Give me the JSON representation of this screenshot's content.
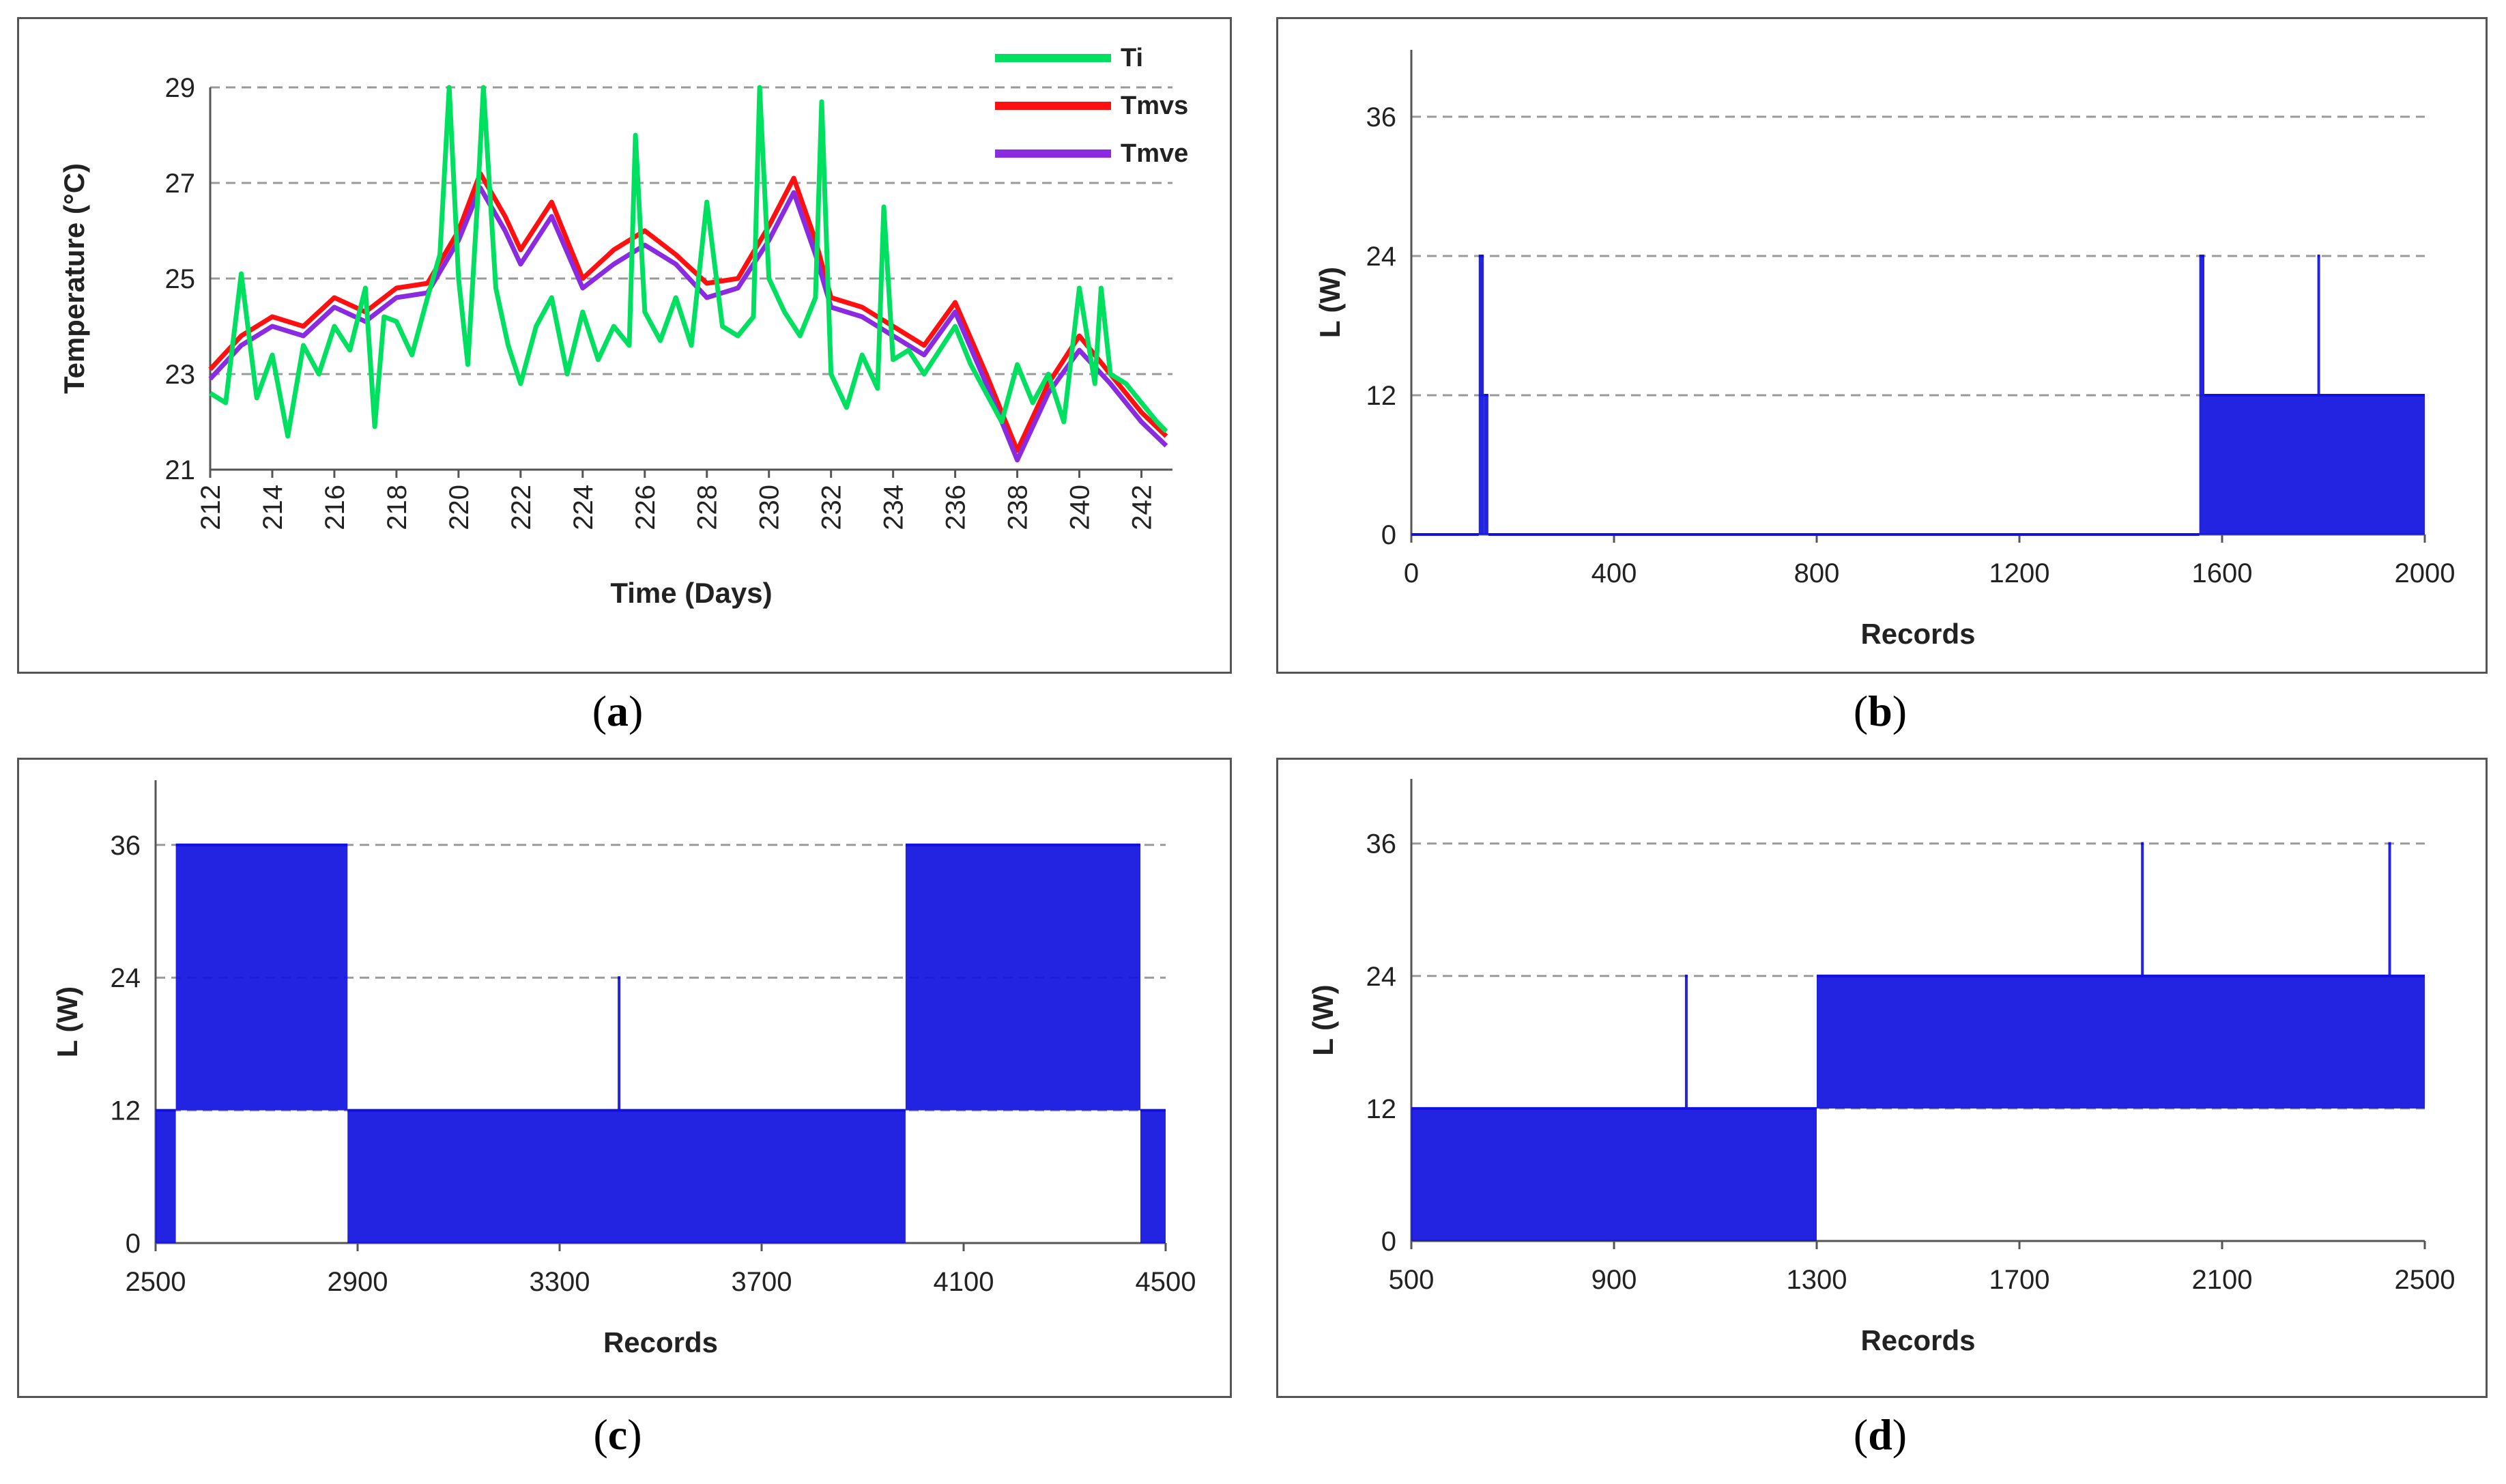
{
  "captions": {
    "a": "a",
    "b": "b",
    "c": "c",
    "d": "d"
  },
  "colors": {
    "Ti": "#00e060",
    "Tmvs": "#ff1010",
    "Tmve": "#8a2be2",
    "load": "#1010e0",
    "grid": "#999999"
  },
  "chart_data": [
    {
      "id": "a",
      "type": "line",
      "title": "",
      "xlabel": "Time (Days)",
      "ylabel": "Temperature (°C)",
      "xlim": [
        212,
        243
      ],
      "ylim": [
        21,
        29
      ],
      "xticks": [
        "212",
        "214",
        "216",
        "218",
        "220",
        "222",
        "224",
        "226",
        "228",
        "230",
        "232",
        "234",
        "236",
        "238",
        "240",
        "242"
      ],
      "yticks": [
        "21",
        "23",
        "25",
        "27",
        "29"
      ],
      "legend": [
        "Ti",
        "Tmvs",
        "Tmve"
      ],
      "series": [
        {
          "name": "Tmvs",
          "x": [
            212,
            213,
            214,
            215,
            216,
            217,
            218,
            219,
            220,
            220.7,
            221.5,
            222,
            223,
            224,
            225,
            226,
            227,
            228,
            229,
            230,
            230.8,
            231.5,
            232,
            233,
            234,
            235,
            236,
            237,
            238,
            239,
            240,
            241,
            242,
            242.8
          ],
          "y": [
            23.1,
            23.8,
            24.2,
            24.0,
            24.6,
            24.3,
            24.8,
            24.9,
            26.0,
            27.2,
            26.3,
            25.6,
            26.6,
            25.0,
            25.6,
            26.0,
            25.5,
            24.9,
            25.0,
            26.1,
            27.1,
            25.8,
            24.6,
            24.4,
            24.0,
            23.6,
            24.5,
            23.0,
            21.4,
            22.8,
            23.8,
            23.0,
            22.2,
            21.7
          ]
        },
        {
          "name": "Tmve",
          "x": [
            212,
            213,
            214,
            215,
            216,
            217,
            218,
            219,
            220,
            220.7,
            221.5,
            222,
            223,
            224,
            225,
            226,
            227,
            228,
            229,
            230,
            230.8,
            231.5,
            232,
            233,
            234,
            235,
            236,
            237,
            238,
            239,
            240,
            241,
            242,
            242.8
          ],
          "y": [
            22.9,
            23.6,
            24.0,
            23.8,
            24.4,
            24.1,
            24.6,
            24.7,
            25.8,
            26.9,
            26.0,
            25.3,
            26.3,
            24.8,
            25.3,
            25.7,
            25.3,
            24.6,
            24.8,
            25.8,
            26.8,
            25.5,
            24.4,
            24.2,
            23.8,
            23.4,
            24.3,
            22.8,
            21.2,
            22.6,
            23.5,
            22.8,
            22.0,
            21.5
          ]
        },
        {
          "name": "Ti",
          "x": [
            212,
            212.5,
            213,
            213.5,
            214,
            214.5,
            215,
            215.5,
            216,
            216.5,
            217,
            217.3,
            217.6,
            218,
            218.5,
            219,
            219.4,
            219.7,
            220,
            220.3,
            220.6,
            220.8,
            221.2,
            221.6,
            222,
            222.5,
            223,
            223.5,
            224,
            224.5,
            225,
            225.5,
            225.7,
            226,
            226.5,
            227,
            227.5,
            228,
            228.5,
            229,
            229.5,
            229.7,
            230,
            230.5,
            231,
            231.5,
            231.7,
            232,
            232.5,
            233,
            233.5,
            233.7,
            234,
            234.5,
            235,
            235.5,
            236,
            236.5,
            237,
            237.5,
            238,
            238.5,
            239,
            239.5,
            240,
            240.5,
            240.7,
            241,
            241.5,
            242,
            242.5,
            242.8
          ],
          "y": [
            22.6,
            22.4,
            25.1,
            22.5,
            23.4,
            21.7,
            23.6,
            23.0,
            24.0,
            23.5,
            24.8,
            21.9,
            24.2,
            24.1,
            23.4,
            24.6,
            25.5,
            29.0,
            25.0,
            23.2,
            26.5,
            29.0,
            24.8,
            23.6,
            22.8,
            24.0,
            24.6,
            23.0,
            24.3,
            23.3,
            24.0,
            23.6,
            28.0,
            24.3,
            23.7,
            24.6,
            23.6,
            26.6,
            24.0,
            23.8,
            24.2,
            29.0,
            25.0,
            24.3,
            23.8,
            24.6,
            28.7,
            23.0,
            22.3,
            23.4,
            22.7,
            26.5,
            23.3,
            23.5,
            23.0,
            23.5,
            24.0,
            23.2,
            22.6,
            22.0,
            23.2,
            22.4,
            23.0,
            22.0,
            24.8,
            22.8,
            24.8,
            23.0,
            22.8,
            22.4,
            22.0,
            21.8
          ]
        }
      ]
    },
    {
      "id": "b",
      "type": "line",
      "title": "",
      "xlabel": "Records",
      "ylabel": "L (W)",
      "xlim": [
        0,
        2000
      ],
      "ylim": [
        0,
        40
      ],
      "xticks": [
        "0",
        "400",
        "800",
        "1200",
        "1600",
        "2000"
      ],
      "yticks": [
        "0",
        "12",
        "24",
        "36"
      ],
      "series": [
        {
          "name": "L",
          "segments": [
            {
              "from": 0,
              "to": 133,
              "low": 0,
              "high": 0
            },
            {
              "from": 133,
              "to": 143,
              "low": 0,
              "high": 24
            },
            {
              "from": 143,
              "to": 152,
              "low": 0,
              "high": 12
            },
            {
              "from": 152,
              "to": 1555,
              "low": 0,
              "high": 0
            },
            {
              "from": 1555,
              "to": 1565,
              "low": 0,
              "high": 24
            },
            {
              "from": 1565,
              "to": 2000,
              "low": 0,
              "high": 12
            },
            {
              "from": 1788,
              "to": 1792,
              "low": 12,
              "high": 24
            }
          ]
        }
      ]
    },
    {
      "id": "c",
      "type": "line",
      "title": "",
      "xlabel": "Records",
      "ylabel": "L (W)",
      "xlim": [
        2500,
        4500
      ],
      "ylim": [
        0,
        40
      ],
      "xticks": [
        "2500",
        "2900",
        "3300",
        "3700",
        "4100",
        "4500"
      ],
      "yticks": [
        "0",
        "12",
        "24",
        "36"
      ],
      "series": [
        {
          "name": "L",
          "segments": [
            {
              "from": 2500,
              "to": 2540,
              "low": 0,
              "high": 12
            },
            {
              "from": 2540,
              "to": 2880,
              "low": 12,
              "high": 36
            },
            {
              "from": 2880,
              "to": 3985,
              "low": 0,
              "high": 12
            },
            {
              "from": 3415,
              "to": 3420,
              "low": 12,
              "high": 24
            },
            {
              "from": 3985,
              "to": 4450,
              "low": 12,
              "high": 36
            },
            {
              "from": 4450,
              "to": 4500,
              "low": 0,
              "high": 12
            }
          ]
        }
      ]
    },
    {
      "id": "d",
      "type": "line",
      "title": "",
      "xlabel": "Records",
      "ylabel": "L (W)",
      "xlim": [
        500,
        2500
      ],
      "ylim": [
        0,
        40
      ],
      "xticks": [
        "500",
        "900",
        "1300",
        "1700",
        "2100",
        "2500"
      ],
      "yticks": [
        "0",
        "12",
        "24",
        "36"
      ],
      "series": [
        {
          "name": "L",
          "segments": [
            {
              "from": 500,
              "to": 1300,
              "low": 0,
              "high": 12
            },
            {
              "from": 1040,
              "to": 1045,
              "low": 12,
              "high": 24
            },
            {
              "from": 1300,
              "to": 2500,
              "low": 12,
              "high": 24
            },
            {
              "from": 1940,
              "to": 1945,
              "low": 24,
              "high": 36
            },
            {
              "from": 2428,
              "to": 2433,
              "low": 24,
              "high": 36
            }
          ]
        }
      ]
    }
  ]
}
